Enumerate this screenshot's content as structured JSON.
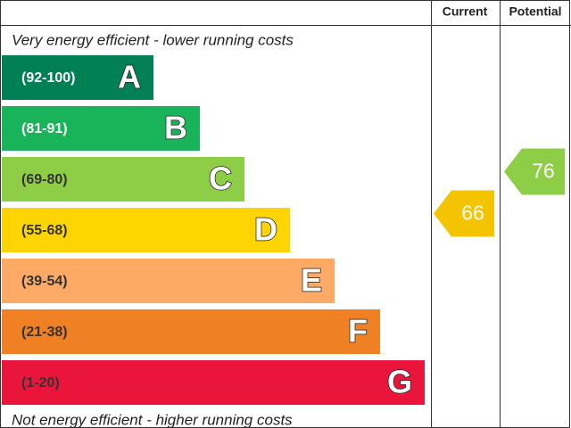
{
  "header": {
    "current": "Current",
    "potential": "Potential"
  },
  "top_note": "Very energy efficient - lower running costs",
  "bottom_note": "Not energy efficient - higher running costs",
  "bands": [
    {
      "range": "(92-100)",
      "letter": "A",
      "color": "#008054"
    },
    {
      "range": "(81-91)",
      "letter": "B",
      "color": "#19b459"
    },
    {
      "range": "(69-80)",
      "letter": "C",
      "color": "#8dce46"
    },
    {
      "range": "(55-68)",
      "letter": "D",
      "color": "#ffd500"
    },
    {
      "range": "(39-54)",
      "letter": "E",
      "color": "#fcaa65"
    },
    {
      "range": "(21-38)",
      "letter": "F",
      "color": "#ef8023"
    },
    {
      "range": "(1-20)",
      "letter": "G",
      "color": "#e9153b"
    }
  ],
  "current": {
    "value": 66,
    "color": "#f5c400"
  },
  "potential": {
    "value": 76,
    "color": "#8dce46"
  }
}
